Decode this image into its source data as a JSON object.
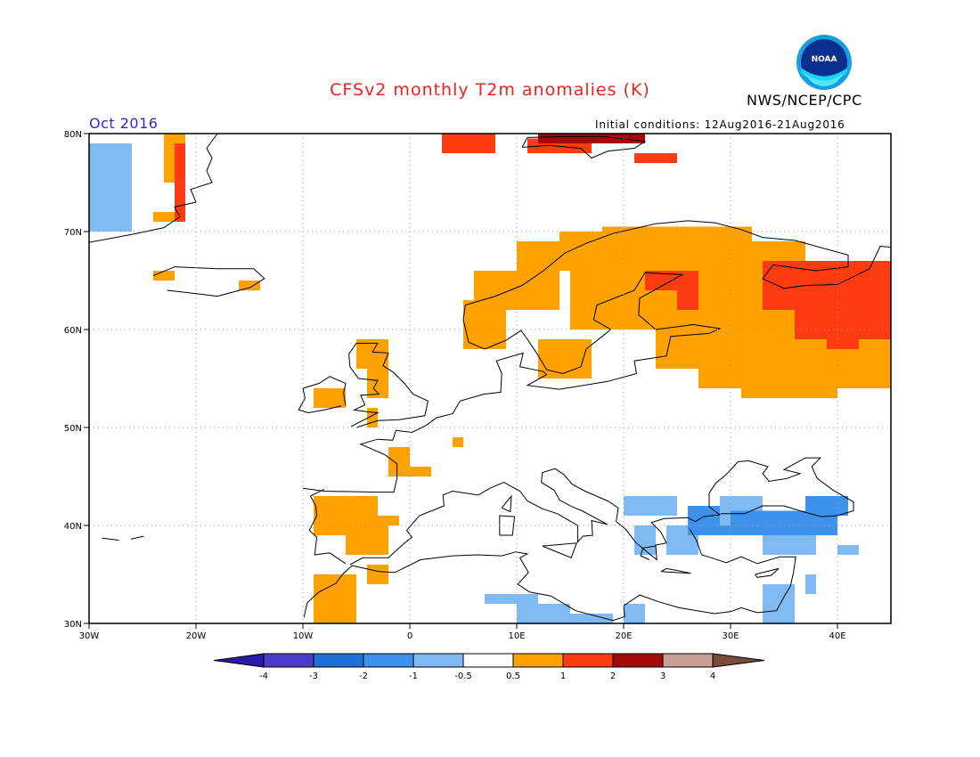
{
  "header": {
    "title": "CFSv2 monthly T2m anomalies (K)",
    "agency": "NWS/NCEP/CPC",
    "logo_text": "NOAA",
    "month": "Oct 2016",
    "initial_conditions": "Initial conditions: 12Aug2016-21Aug2016"
  },
  "map": {
    "lon_range": [
      -30,
      45
    ],
    "lat_range": [
      30,
      80
    ],
    "lat_labels": [
      "30N",
      "40N",
      "50N",
      "60N",
      "70N",
      "80N"
    ],
    "lon_labels": [
      "30W",
      "20W",
      "10W",
      "0",
      "10E",
      "20E",
      "30E",
      "40E"
    ]
  },
  "legend": {
    "labels": [
      "-4",
      "-3",
      "-2",
      "-1",
      "-0.5",
      "0.5",
      "1",
      "2",
      "3",
      "4"
    ],
    "colors": [
      "#2a1aa8",
      "#4b3ccc",
      "#1f6fd8",
      "#3d93ec",
      "#7fbaf3",
      "#ffffff",
      "#ffa200",
      "#ff3b12",
      "#a50a0a",
      "#c8a195",
      "#7a4a3c"
    ]
  },
  "colors": {
    "title": "#e8231f",
    "month": "#2a2ae0",
    "warm1": "#ffa200",
    "warm2": "#ff3b12",
    "warm3": "#a50a0a",
    "cool1": "#7fbaf3",
    "cool2": "#3d93ec"
  }
}
